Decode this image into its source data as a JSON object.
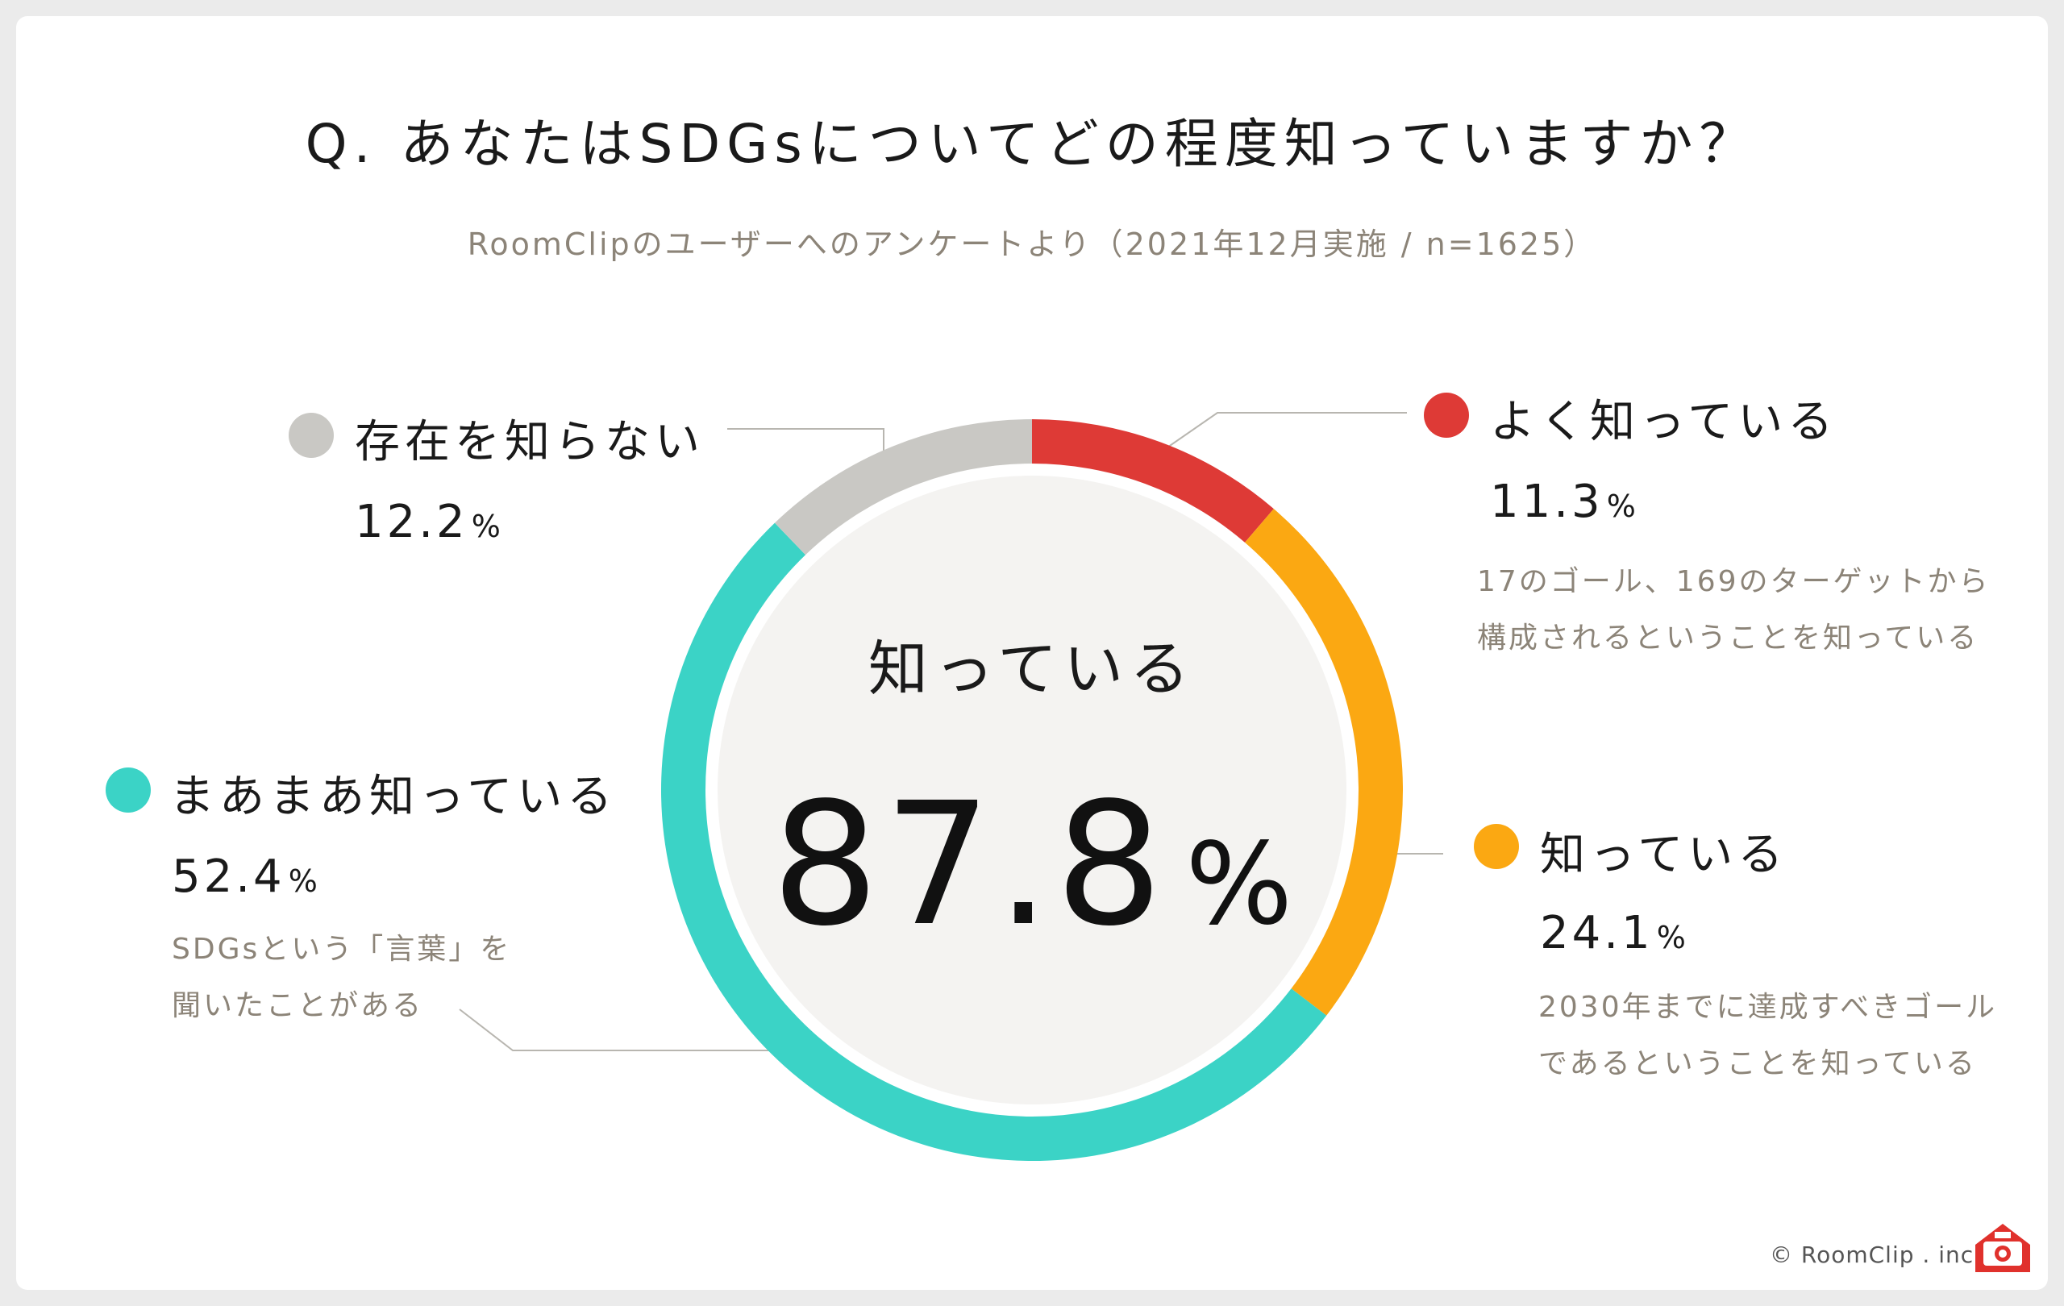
{
  "title": "Q. あなたはSDGsについてどの程度知っていますか？",
  "subtitle": "RoomClipのユーザーへのアンケートより（2021年12月実施 / n=1625）",
  "colors": {
    "very_well": "#de3a36",
    "know": "#fba812",
    "somewhat": "#3bd3c6",
    "unaware": "#c9c8c4",
    "center_fill": "#f4f3f1"
  },
  "center": {
    "label": "知っている",
    "value": "87.8",
    "unit": "%"
  },
  "legend": {
    "very_well": {
      "name": "よく知っている",
      "value": "11.3",
      "unit": "%",
      "desc_line1": "17のゴール、169のターゲットから",
      "desc_line2": "構成されるということを知っている"
    },
    "know": {
      "name": "知っている",
      "value": "24.1",
      "unit": "%",
      "desc_line1": "2030年までに達成すべきゴール",
      "desc_line2": "であるということを知っている"
    },
    "somewhat": {
      "name": "まあまあ知っている",
      "value": "52.4",
      "unit": "%",
      "desc_line1": "SDGsという「言葉」を",
      "desc_line2": "聞いたことがある"
    },
    "unaware": {
      "name": "存在を知らない",
      "value": "12.2",
      "unit": "%"
    }
  },
  "chart_data": {
    "type": "pie",
    "categories": [
      "よく知っている",
      "知っている",
      "まあまあ知っている",
      "存在を知らない"
    ],
    "values": [
      11.3,
      24.1,
      52.4,
      12.2
    ],
    "colors": [
      "#de3a36",
      "#fba812",
      "#3bd3c6",
      "#c9c8c4"
    ],
    "title": "Q. あなたはSDGsについてどの程度知っていますか？",
    "center_label": "知っている",
    "center_value": 87.8
  },
  "footer": {
    "copyright": "© RoomClip . inc",
    "logo_icon": "roomclip-house-camera-icon"
  }
}
